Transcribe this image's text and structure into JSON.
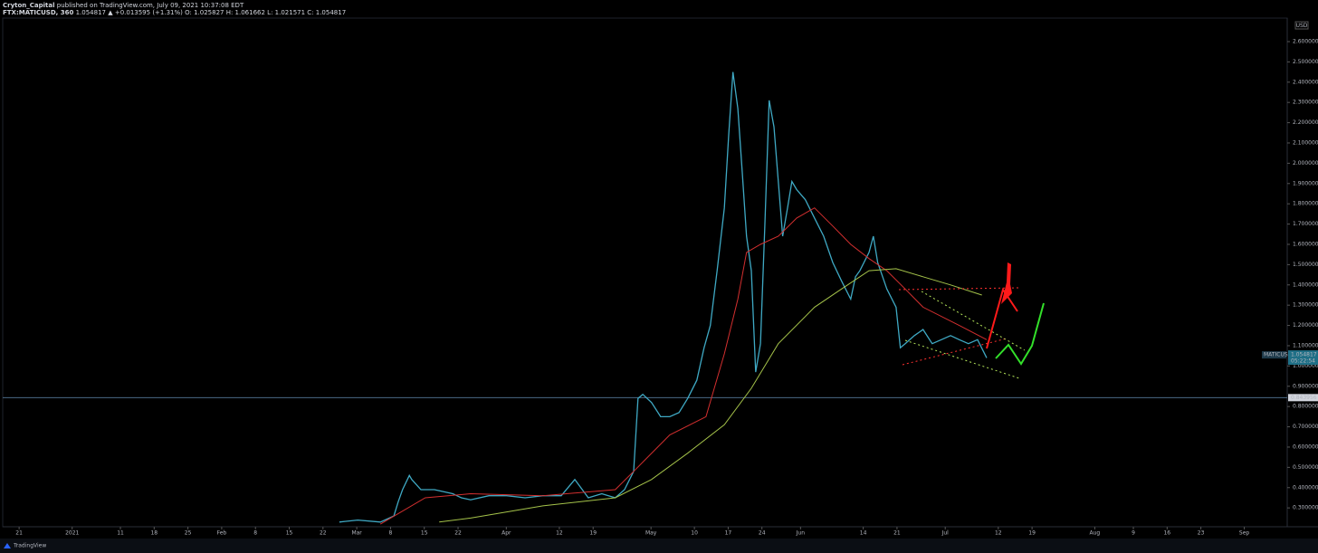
{
  "header": {
    "author": "Cryton_Capital",
    "published": "published on TradingView.com, July 09, 2021 10:37:08 EDT",
    "symbol": "FTX:MATICUSD, 360",
    "quote": "1.054817 ▲ +0.013595 (+1.31%) O: 1.025827 H: 1.061662 L: 1.021571 C: 1.054817"
  },
  "chart_data": {
    "type": "line",
    "currency": "USD",
    "xlim": [
      -3.4,
      262.9
    ],
    "xticks": [
      {
        "value": 0,
        "label": "21"
      },
      {
        "value": 11,
        "label": "2021"
      },
      {
        "value": 21,
        "label": "11"
      },
      {
        "value": 28,
        "label": "18"
      },
      {
        "value": 35,
        "label": "25"
      },
      {
        "value": 42,
        "label": "Feb"
      },
      {
        "value": 49,
        "label": "8"
      },
      {
        "value": 56,
        "label": "15"
      },
      {
        "value": 63,
        "label": "22"
      },
      {
        "value": 70,
        "label": "Mar"
      },
      {
        "value": 77,
        "label": "8"
      },
      {
        "value": 84,
        "label": "15"
      },
      {
        "value": 91,
        "label": "22"
      },
      {
        "value": 101,
        "label": "Apr"
      },
      {
        "value": 112,
        "label": "12"
      },
      {
        "value": 119,
        "label": "19"
      },
      {
        "value": 131,
        "label": "May"
      },
      {
        "value": 140,
        "label": "10"
      },
      {
        "value": 147,
        "label": "17"
      },
      {
        "value": 154,
        "label": "24"
      },
      {
        "value": 162,
        "label": "Jun"
      },
      {
        "value": 175,
        "label": "14"
      },
      {
        "value": 182,
        "label": "21"
      },
      {
        "value": 192,
        "label": "Jul"
      },
      {
        "value": 203,
        "label": "12"
      },
      {
        "value": 210,
        "label": "19"
      },
      {
        "value": 223,
        "label": "Aug"
      },
      {
        "value": 231,
        "label": "9"
      },
      {
        "value": 238,
        "label": "16"
      },
      {
        "value": 245,
        "label": "23"
      },
      {
        "value": 254,
        "label": "Sep"
      }
    ],
    "ylim": [
      0.207,
      2.716
    ],
    "yticks": [
      {
        "value": 0.3,
        "label": "0.300000"
      },
      {
        "value": 0.4,
        "label": "0.400000"
      },
      {
        "value": 0.5,
        "label": "0.500000"
      },
      {
        "value": 0.6,
        "label": "0.600000"
      },
      {
        "value": 0.7,
        "label": "0.700000"
      },
      {
        "value": 0.8,
        "label": "0.800000"
      },
      {
        "value": 0.9,
        "label": "0.900000"
      },
      {
        "value": 1.0,
        "label": "1.000000"
      },
      {
        "value": 1.1,
        "label": "1.100000"
      },
      {
        "value": 1.2,
        "label": "1.200000"
      },
      {
        "value": 1.3,
        "label": "1.300000"
      },
      {
        "value": 1.4,
        "label": "1.400000"
      },
      {
        "value": 1.5,
        "label": "1.500000"
      },
      {
        "value": 1.6,
        "label": "1.600000"
      },
      {
        "value": 1.7,
        "label": "1.700000"
      },
      {
        "value": 1.8,
        "label": "1.800000"
      },
      {
        "value": 1.9,
        "label": "1.900000"
      },
      {
        "value": 2.0,
        "label": "2.000000"
      },
      {
        "value": 2.1,
        "label": "2.100000"
      },
      {
        "value": 2.2,
        "label": "2.200000"
      },
      {
        "value": 2.3,
        "label": "2.300000"
      },
      {
        "value": 2.4,
        "label": "2.400000"
      },
      {
        "value": 2.5,
        "label": "2.500000"
      },
      {
        "value": 2.6,
        "label": "2.600000"
      }
    ],
    "grid": false,
    "series": [
      {
        "name": "MATICUSD",
        "color": "#3fa9c4",
        "x": [
          66.4,
          70.2,
          74.9,
          77.7,
          78.6,
          79.5,
          80.9,
          81.4,
          83.3,
          86.1,
          89.9,
          91.7,
          93.6,
          97.4,
          101.1,
          104.9,
          108.6,
          112.4,
          115.2,
          118.0,
          120.8,
          123.6,
          125.5,
          127.4,
          128.3,
          129.3,
          131.1,
          133.0,
          134.9,
          136.8,
          138.6,
          140.5,
          142.0,
          143.3,
          144.7,
          146.2,
          147.1,
          148.0,
          149.0,
          149.9,
          150.8,
          151.8,
          152.7,
          153.7,
          154.6,
          155.5,
          156.5,
          157.4,
          158.3,
          159.3,
          160.2,
          161.2,
          163.0,
          164.9,
          166.8,
          168.7,
          170.5,
          172.4,
          173.4,
          174.3,
          176.2,
          177.1,
          178.0,
          179.9,
          181.8,
          182.7,
          183.7,
          185.6,
          187.4,
          189.3,
          191.2,
          193.1,
          194.9,
          196.8,
          198.7,
          200.6
        ],
        "values": [
          0.23,
          0.24,
          0.23,
          0.26,
          0.33,
          0.39,
          0.46,
          0.44,
          0.39,
          0.39,
          0.37,
          0.35,
          0.34,
          0.36,
          0.36,
          0.35,
          0.36,
          0.36,
          0.44,
          0.35,
          0.37,
          0.35,
          0.39,
          0.48,
          0.84,
          0.86,
          0.82,
          0.75,
          0.75,
          0.77,
          0.84,
          0.93,
          1.09,
          1.2,
          1.47,
          1.78,
          2.14,
          2.45,
          2.27,
          1.96,
          1.64,
          1.47,
          0.97,
          1.11,
          1.69,
          2.31,
          2.18,
          1.91,
          1.64,
          1.78,
          1.91,
          1.87,
          1.82,
          1.73,
          1.64,
          1.51,
          1.42,
          1.33,
          1.44,
          1.47,
          1.56,
          1.64,
          1.51,
          1.38,
          1.29,
          1.09,
          1.11,
          1.15,
          1.18,
          1.11,
          1.13,
          1.15,
          1.13,
          1.11,
          1.13,
          1.04
        ]
      },
      {
        "color": "#d32f2f",
        "x": [
          74.9,
          84.2,
          93.6,
          108.6,
          123.6,
          127.4,
          134.9,
          142.4,
          146.2,
          149.0,
          150.8,
          153.7,
          157.4,
          161.2,
          164.9,
          168.7,
          172.4,
          176.2,
          179.9,
          183.7,
          187.4,
          194.9,
          200.6
        ],
        "values": [
          0.22,
          0.35,
          0.37,
          0.36,
          0.39,
          0.48,
          0.66,
          0.75,
          1.06,
          1.33,
          1.56,
          1.6,
          1.64,
          1.73,
          1.78,
          1.69,
          1.6,
          1.53,
          1.47,
          1.38,
          1.29,
          1.2,
          1.13
        ]
      },
      {
        "color": "#a5c34a",
        "x": [
          87.1,
          93.6,
          108.6,
          123.6,
          131.1,
          138.6,
          146.2,
          151.8,
          157.4,
          164.9,
          170.5,
          176.2,
          181.8,
          187.4,
          193.1,
          199.6
        ],
        "values": [
          0.23,
          0.25,
          0.31,
          0.35,
          0.44,
          0.57,
          0.71,
          0.89,
          1.11,
          1.29,
          1.38,
          1.47,
          1.48,
          1.44,
          1.4,
          1.35
        ]
      }
    ],
    "price_label": {
      "name": "MATICUSD",
      "value": 1.054817,
      "countdown": "05:22:54"
    },
    "hline": 0.843956
  },
  "footer": "TradingView"
}
